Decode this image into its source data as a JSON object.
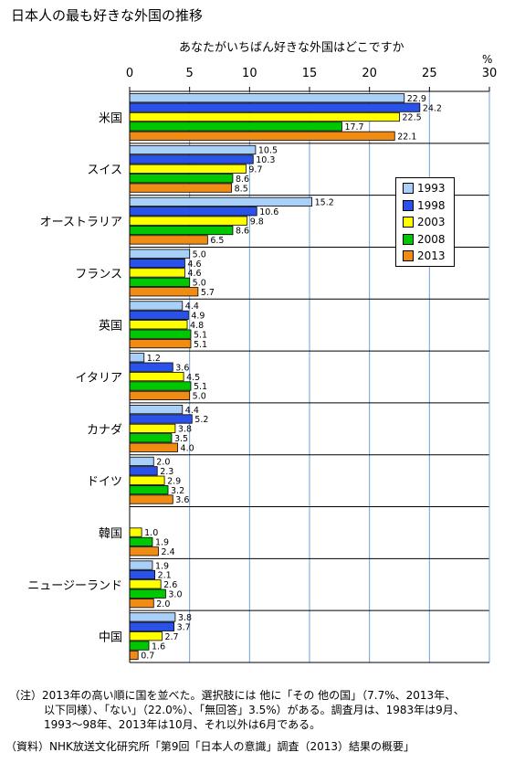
{
  "title": "日本人の最も好きな外国の推移",
  "chart_data": {
    "type": "bar",
    "orientation": "horizontal",
    "title": "あなたがいちばん好きな外国はどこですか",
    "unit": "%",
    "xlim": [
      0,
      30
    ],
    "ticks": [
      0,
      5,
      10,
      15,
      20,
      25,
      30
    ],
    "grid": true,
    "legend_position": "right",
    "categories": [
      "米国",
      "スイス",
      "オーストラリア",
      "フランス",
      "英国",
      "イタリア",
      "カナダ",
      "ドイツ",
      "韓国",
      "ニュージーランド",
      "中国"
    ],
    "series": [
      {
        "name": "1993",
        "color": "#a8d0f8",
        "values": [
          22.9,
          10.5,
          15.2,
          5.0,
          4.4,
          1.2,
          4.4,
          2.0,
          null,
          1.9,
          3.8
        ]
      },
      {
        "name": "1998",
        "color": "#2a52e8",
        "values": [
          24.2,
          10.3,
          10.6,
          4.6,
          4.9,
          3.6,
          5.2,
          2.3,
          null,
          2.1,
          3.7
        ]
      },
      {
        "name": "2003",
        "color": "#ffff00",
        "values": [
          22.5,
          9.7,
          9.8,
          4.6,
          4.8,
          4.5,
          3.8,
          2.9,
          1.0,
          2.6,
          2.7
        ]
      },
      {
        "name": "2008",
        "color": "#00c800",
        "values": [
          17.7,
          8.6,
          8.6,
          5.0,
          5.1,
          5.1,
          3.5,
          3.2,
          1.9,
          3.0,
          1.6
        ]
      },
      {
        "name": "2013",
        "color": "#f08c14",
        "values": [
          22.1,
          8.5,
          6.5,
          5.7,
          5.1,
          5.0,
          4.0,
          3.6,
          2.4,
          2.0,
          0.7
        ]
      }
    ]
  },
  "notes": {
    "line1": "（注）2013年の高い順に国を並べた。選択肢には 他に「その 他の国」（7.7%、2013年、",
    "line2": "以下同様）、「ない」（22.0%）、「無回答」3.5%）がある。調査月は、1983年は9月、",
    "line3": "1993〜98年、2013年は10月、それ以外は6月である。"
  },
  "source": "（資料）NHK放送文化研究所「第9回「日本人の意識」調査（2013）結果の概要」"
}
